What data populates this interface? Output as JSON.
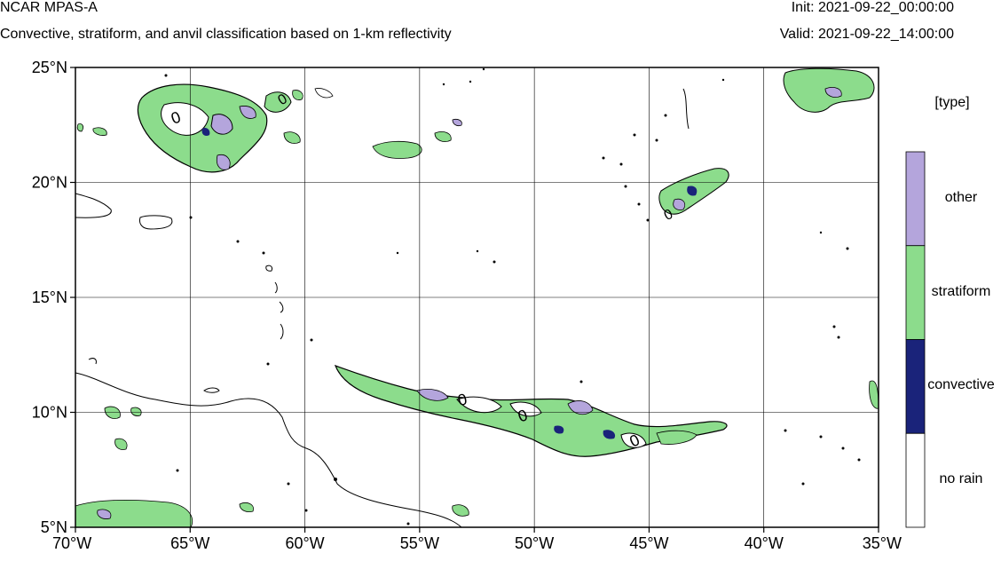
{
  "header": {
    "title": "NCAR MPAS-A",
    "subtitle": "Convective, stratiform, and anvil classification based on 1-km reflectivity",
    "init": "Init: 2021-09-22_00:00:00",
    "valid": "Valid: 2021-09-22_14:00:00"
  },
  "map": {
    "lon_range": [
      -70,
      -35
    ],
    "lat_range": [
      5,
      25
    ],
    "lon_ticks": [
      {
        "value": -70,
        "label": "70°W"
      },
      {
        "value": -65,
        "label": "65°W"
      },
      {
        "value": -60,
        "label": "60°W"
      },
      {
        "value": -55,
        "label": "55°W"
      },
      {
        "value": -50,
        "label": "50°W"
      },
      {
        "value": -45,
        "label": "45°W"
      },
      {
        "value": -40,
        "label": "40°W"
      },
      {
        "value": -35,
        "label": "35°W"
      }
    ],
    "lat_ticks": [
      {
        "value": 5,
        "label": "5°N"
      },
      {
        "value": 10,
        "label": "10°N"
      },
      {
        "value": 15,
        "label": "15°N"
      },
      {
        "value": 20,
        "label": "20°N"
      },
      {
        "value": 25,
        "label": "25°N"
      }
    ],
    "grid": true,
    "contour_label": "0"
  },
  "legend": {
    "title": "[type]",
    "categories": [
      {
        "label": "other",
        "color": "#b4a5dc"
      },
      {
        "label": "stratiform",
        "color": "#8cdc8c"
      },
      {
        "label": "convective",
        "color": "#1a237a"
      },
      {
        "label": "no rain",
        "color": "#ffffff"
      }
    ]
  },
  "colors": {
    "other": "#b4a5dc",
    "stratiform": "#8cdc8c",
    "convective": "#1a237a"
  }
}
